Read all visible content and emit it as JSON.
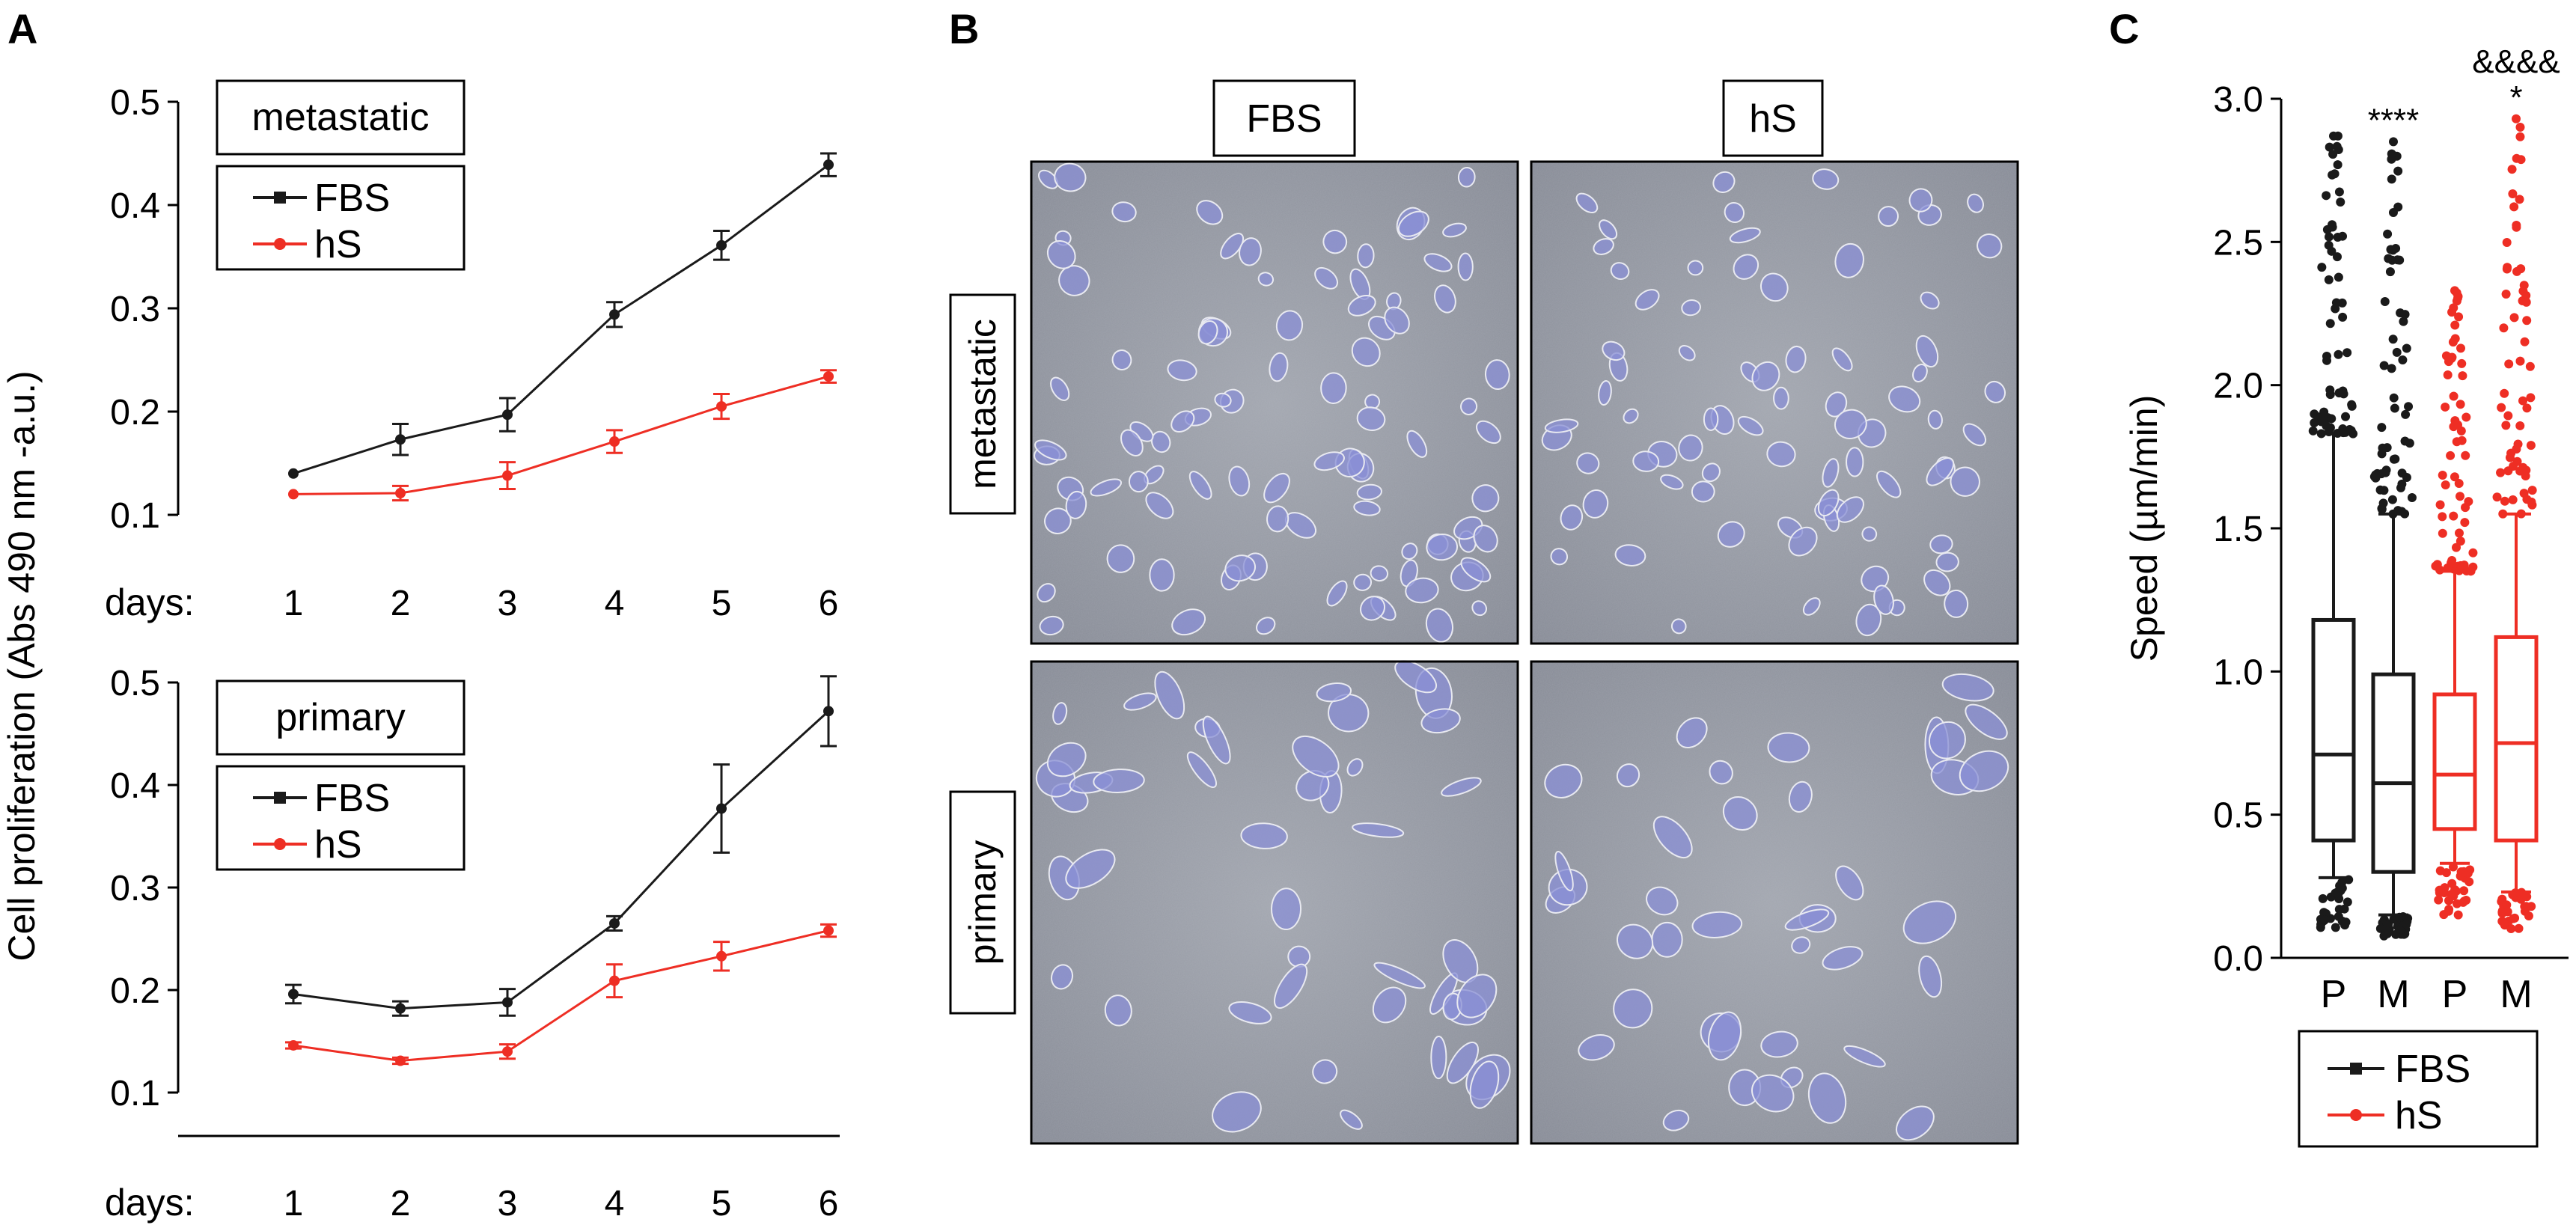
{
  "panel_letters": {
    "a": "A",
    "b": "B",
    "c": "C"
  },
  "colors": {
    "fbs": "#1a1a1a",
    "hs": "#ee2e24",
    "micro_bg": "#8f939d",
    "cell": "#8a8fd6"
  },
  "panel_a": {
    "shared_ylabel": "Cell proliferation (Abs 490 nm -a.u.)",
    "days_label": "days:"
  },
  "panel_b": {
    "col_labels": [
      "FBS",
      "hS"
    ],
    "row_labels": [
      "metastatic",
      "primary"
    ]
  },
  "chart_data": [
    {
      "type": "line",
      "panel": "A-top",
      "title": "metastatic",
      "xlabel": "days:",
      "ylabel": "Cell proliferation (Abs 490 nm -a.u.)",
      "x": [
        1,
        2,
        3,
        4,
        5,
        6
      ],
      "x_ticks": [
        "1",
        "2",
        "3",
        "4",
        "5",
        "6"
      ],
      "ylim": [
        0.1,
        0.5
      ],
      "y_ticks": [
        "0.1",
        "0.2",
        "0.3",
        "0.4",
        "0.5"
      ],
      "legend_position": "top-left",
      "series": [
        {
          "name": "FBS",
          "color": "#1a1a1a",
          "values": [
            0.14,
            0.173,
            0.197,
            0.294,
            0.361,
            0.439
          ],
          "errors": [
            0.0,
            0.015,
            0.016,
            0.012,
            0.014,
            0.011
          ]
        },
        {
          "name": "hS",
          "color": "#ee2e24",
          "values": [
            0.12,
            0.121,
            0.138,
            0.171,
            0.205,
            0.234
          ],
          "errors": [
            0.0,
            0.007,
            0.013,
            0.011,
            0.012,
            0.006
          ]
        }
      ]
    },
    {
      "type": "line",
      "panel": "A-bottom",
      "title": "primary",
      "xlabel": "days:",
      "ylabel": "Cell proliferation (Abs 490 nm -a.u.)",
      "x": [
        1,
        2,
        3,
        4,
        5,
        6
      ],
      "x_ticks": [
        "1",
        "2",
        "3",
        "4",
        "5",
        "6"
      ],
      "ylim": [
        0.1,
        0.5
      ],
      "y_ticks": [
        "0.1",
        "0.2",
        "0.3",
        "0.4",
        "0.5"
      ],
      "legend_position": "top-left",
      "series": [
        {
          "name": "FBS",
          "color": "#1a1a1a",
          "values": [
            0.196,
            0.182,
            0.188,
            0.265,
            0.377,
            0.472
          ],
          "errors": [
            0.009,
            0.007,
            0.013,
            0.007,
            0.043,
            0.034
          ]
        },
        {
          "name": "hS",
          "color": "#ee2e24",
          "values": [
            0.146,
            0.131,
            0.14,
            0.209,
            0.233,
            0.258
          ],
          "errors": [
            0.003,
            0.003,
            0.007,
            0.016,
            0.014,
            0.006
          ]
        }
      ]
    },
    {
      "type": "box",
      "panel": "C",
      "ylabel": "Speed (µm/min)",
      "ylim": [
        0.0,
        3.0
      ],
      "y_ticks": [
        "0.0",
        "0.5",
        "1.0",
        "1.5",
        "2.0",
        "2.5",
        "3.0"
      ],
      "categories": [
        "P",
        "M",
        "P",
        "M"
      ],
      "legend_position": "bottom",
      "legend": [
        {
          "name": "FBS",
          "color": "#1a1a1a"
        },
        {
          "name": "hS",
          "color": "#ee2e24"
        }
      ],
      "boxes": [
        {
          "category": "P",
          "group": "FBS",
          "color": "#1a1a1a",
          "q1": 0.41,
          "median": 0.71,
          "q3": 1.18,
          "whisker_low": 0.28,
          "whisker_high": 1.83,
          "outlier_min": 0.1,
          "outlier_max": 2.87,
          "annotation": ""
        },
        {
          "category": "M",
          "group": "FBS",
          "color": "#1a1a1a",
          "q1": 0.3,
          "median": 0.61,
          "q3": 0.99,
          "whisker_low": 0.15,
          "whisker_high": 1.55,
          "outlier_min": 0.07,
          "outlier_max": 2.85,
          "annotation": "****"
        },
        {
          "category": "P",
          "group": "hS",
          "color": "#ee2e24",
          "q1": 0.45,
          "median": 0.64,
          "q3": 0.92,
          "whisker_low": 0.33,
          "whisker_high": 1.35,
          "outlier_min": 0.15,
          "outlier_max": 2.33,
          "annotation": ""
        },
        {
          "category": "M",
          "group": "hS",
          "color": "#ee2e24",
          "q1": 0.41,
          "median": 0.75,
          "q3": 1.12,
          "whisker_low": 0.23,
          "whisker_high": 1.55,
          "outlier_min": 0.1,
          "outlier_max": 2.93,
          "annotation": "*",
          "annotation2": "&&&&"
        }
      ]
    }
  ]
}
